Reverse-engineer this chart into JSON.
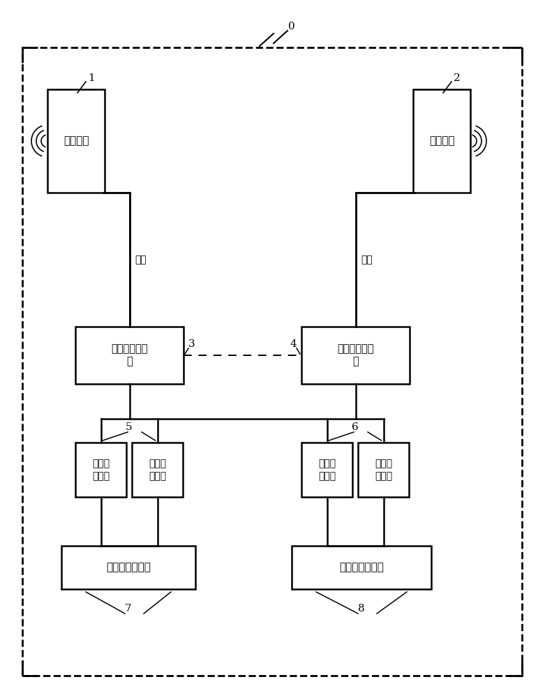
{
  "bg_color": "#ffffff",
  "label_0": "0",
  "label_1": "1",
  "label_2": "2",
  "label_3": "3",
  "label_4": "4",
  "label_5": "5",
  "label_6": "6",
  "label_7": "7",
  "label_8": "8",
  "ant1_text": "定向天线",
  "ant2_text": "定向天线",
  "feed1_text": "馈线",
  "feed2_text": "馈线",
  "dist1_text": "第一信道分配\n器",
  "dist2_text": "第二信道分配\n器",
  "ch1a_text": "第一收\n发信道",
  "ch1b_text": "第一收\n发信道",
  "ch2a_text": "第二收\n发信道",
  "ch2b_text": "第二收\n发信道",
  "rf1_text": "第一射频收发器",
  "rf2_text": "第二射频收发器"
}
